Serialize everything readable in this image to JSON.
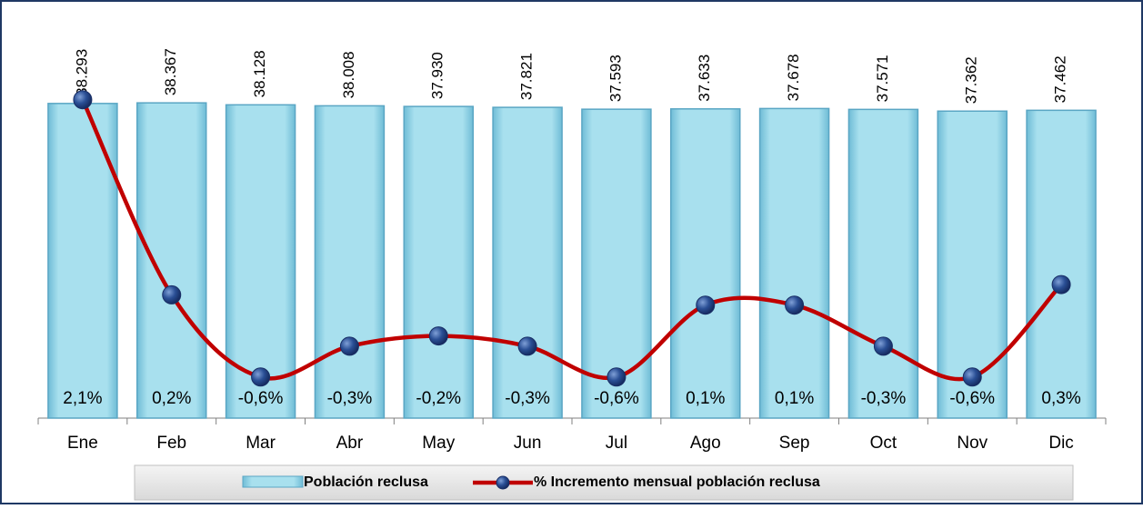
{
  "chart_data": {
    "type": "bar",
    "categories": [
      "Ene",
      "Feb",
      "Mar",
      "Abr",
      "May",
      "Jun",
      "Jul",
      "Ago",
      "Sep",
      "Oct",
      "Nov",
      "Dic"
    ],
    "series": [
      {
        "name": "Población reclusa",
        "type": "bar",
        "color": "#9fdcec",
        "values": [
          38293,
          38367,
          38128,
          38008,
          37930,
          37821,
          37593,
          37633,
          37678,
          37571,
          37362,
          37462
        ],
        "value_labels": [
          "38.293",
          "38.367",
          "38.128",
          "38.008",
          "37.930",
          "37.821",
          "37.593",
          "37.633",
          "37.678",
          "37.571",
          "37.362",
          "37.462"
        ]
      },
      {
        "name": "% Incremento mensual población reclusa",
        "type": "line",
        "axis": "y2",
        "color": "#c00000",
        "values": [
          2.1,
          0.2,
          -0.6,
          -0.3,
          -0.2,
          -0.3,
          -0.6,
          0.1,
          0.1,
          -0.3,
          -0.6,
          0.3
        ],
        "value_labels": [
          "2,1%",
          "0,2%",
          "-0,6%",
          "-0,3%",
          "-0,2%",
          "-0,3%",
          "-0,6%",
          "0,1%",
          "0,1%",
          "-0,3%",
          "-0,6%",
          "0,3%"
        ]
      }
    ],
    "ylim": [
      0,
      50000
    ],
    "y2lim": [
      -1,
      3
    ],
    "legend": "bottom"
  }
}
